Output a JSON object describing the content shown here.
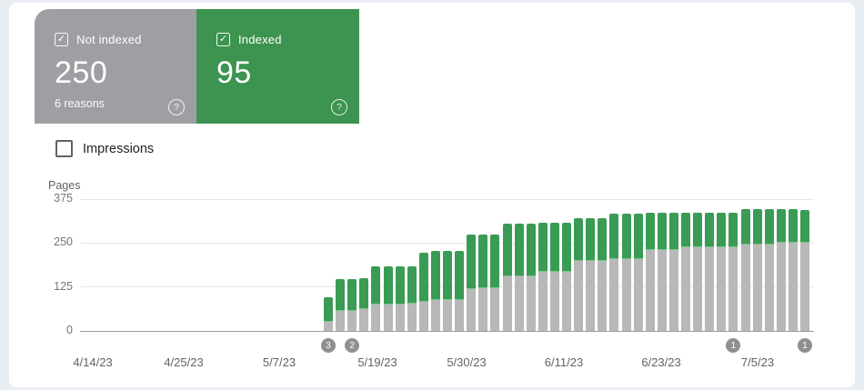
{
  "cards": {
    "not_indexed": {
      "label": "Not indexed",
      "value": "250",
      "sub": "6 reasons",
      "checked": true,
      "color": "#9d9fa2"
    },
    "indexed": {
      "label": "Indexed",
      "value": "95",
      "checked": true,
      "color": "#3c9450"
    }
  },
  "icons": {
    "checkbox_check": "✓",
    "help": "?"
  },
  "impressions": {
    "label": "Impressions",
    "checked": false
  },
  "chart_data": {
    "type": "bar",
    "stacked": true,
    "ylabel": "Pages",
    "xlabel": "",
    "ylim": [
      0,
      375
    ],
    "yticks": [
      0,
      125,
      250,
      375
    ],
    "grid": true,
    "xtick_labels": [
      "4/14/23",
      "4/25/23",
      "5/7/23",
      "5/19/23",
      "5/30/23",
      "6/11/23",
      "6/23/23",
      "7/5/23"
    ],
    "series": [
      {
        "name": "Not indexed",
        "color": "#b8b8b8",
        "values": [
          25,
          57,
          57,
          62,
          74,
          76,
          76,
          78,
          84,
          88,
          88,
          88,
          120,
          122,
          122,
          154,
          154,
          154,
          168,
          168,
          168,
          200,
          200,
          200,
          204,
          204,
          204,
          230,
          230,
          230,
          237,
          237,
          237,
          237,
          237,
          247,
          247,
          247,
          250,
          250,
          250
        ]
      },
      {
        "name": "Indexed",
        "color": "#3a9b55",
        "values": [
          70,
          90,
          90,
          88,
          110,
          108,
          108,
          106,
          139,
          140,
          140,
          140,
          153,
          153,
          152,
          152,
          150,
          150,
          141,
          141,
          141,
          121,
          120,
          120,
          130,
          130,
          130,
          106,
          106,
          106,
          100,
          100,
          100,
          100,
          100,
          99,
          99,
          99,
          97,
          97,
          95
        ]
      }
    ],
    "markers": [
      {
        "label": "3",
        "bar_index": 0
      },
      {
        "label": "2",
        "bar_index": 2
      },
      {
        "label": "1",
        "bar_index": 34
      },
      {
        "label": "1",
        "bar_index": 40
      }
    ]
  }
}
